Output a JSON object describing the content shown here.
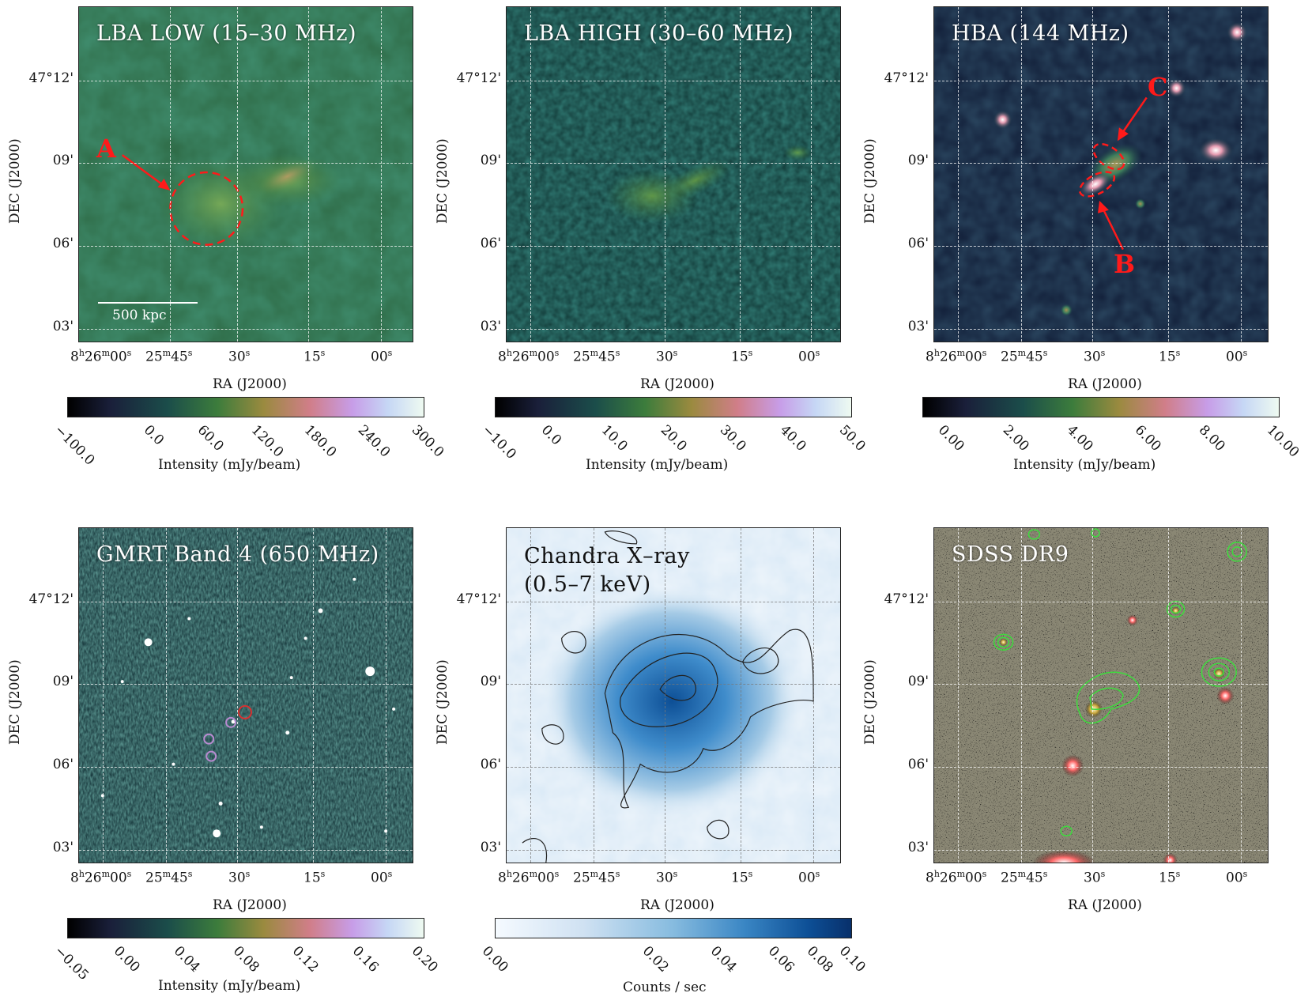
{
  "panels": [
    {
      "title": "LBA LOW (15–30 MHz)"
    },
    {
      "title": "LBA HIGH (30–60 MHz)"
    },
    {
      "title": "HBA (144 MHz)"
    },
    {
      "title": "GMRT Band 4 (650 MHz)"
    },
    {
      "title_line1": "Chandra X–ray",
      "title_line2": "(0.5–7 keV)"
    },
    {
      "title": "SDSS DR9"
    }
  ],
  "axes": {
    "y_title": "DEC (J2000)",
    "x_title": "RA (J2000)",
    "y_ticks": [
      "47°12'",
      "09'",
      "06'",
      "03'"
    ],
    "x_ticks": [
      {
        "base": "8",
        "h": "h",
        "mid": "26",
        "m": "m",
        "tail": "00",
        "s": "s"
      },
      {
        "base": "",
        "h": "",
        "mid": "25",
        "m": "m",
        "tail": "45",
        "s": "s"
      },
      {
        "base": "",
        "h": "",
        "mid": "",
        "m": "",
        "tail": "30",
        "s": "s"
      },
      {
        "base": "",
        "h": "",
        "mid": "",
        "m": "",
        "tail": "15",
        "s": "s"
      },
      {
        "base": "",
        "h": "",
        "mid": "",
        "m": "",
        "tail": "00",
        "s": "s"
      }
    ]
  },
  "annotations": {
    "A": "A",
    "B": "B",
    "C": "C",
    "scale": "500 kpc"
  },
  "colorbars": [
    {
      "title": "Intensity (mJy/beam)",
      "ticks": [
        "−100.0",
        "0.0",
        "60.0",
        "120.0",
        "180.0",
        "240.0",
        "300.0"
      ]
    },
    {
      "title": "Intensity (mJy/beam)",
      "ticks": [
        "−10.0",
        "0.0",
        "10.0",
        "20.0",
        "30.0",
        "40.0",
        "50.0"
      ]
    },
    {
      "title": "Intensity (mJy/beam)",
      "ticks": [
        "0.00",
        "2.00",
        "4.00",
        "6.00",
        "8.00",
        "10.00"
      ]
    },
    {
      "title": "Intensity (mJy/beam)",
      "ticks": [
        "−0.05",
        "0.00",
        "0.04",
        "0.08",
        "0.12",
        "0.16",
        "0.20"
      ]
    },
    {
      "title": "Counts / sec",
      "ticks": [
        "0.00",
        "0.02",
        "0.04",
        "0.06",
        "0.08",
        "0.10"
      ]
    }
  ]
}
